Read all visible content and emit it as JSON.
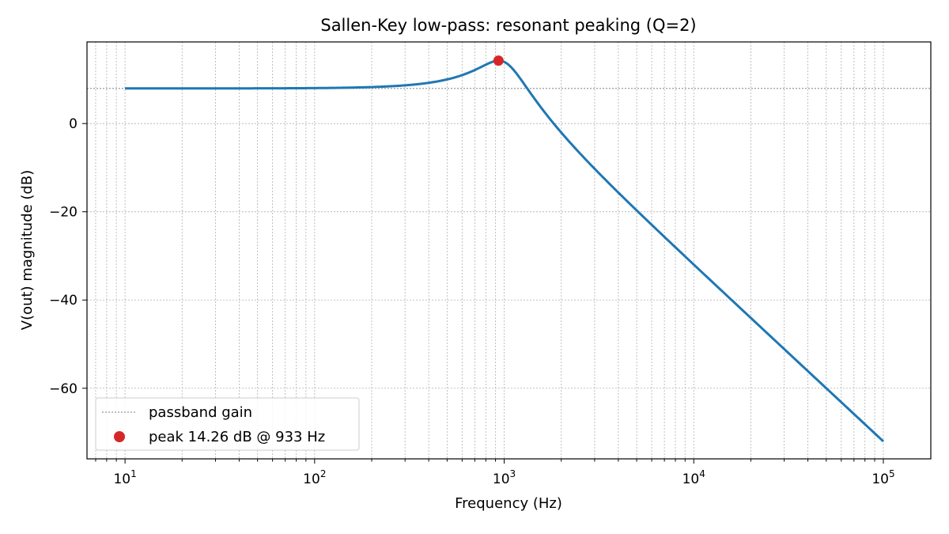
{
  "chart_data": {
    "type": "line",
    "title": "Sallen-Key low-pass: resonant peaking (Q=2)",
    "xlabel": "Frequency (Hz)",
    "ylabel": "V(out) magnitude (dB)",
    "xscale": "log",
    "xlim": [
      6.3,
      178
    ],
    "ylim": [
      -76,
      18.5
    ],
    "x_ticks": [
      {
        "value": 10,
        "base": "10",
        "exp": "1"
      },
      {
        "value": 100,
        "base": "10",
        "exp": "2"
      },
      {
        "value": 1000,
        "base": "10",
        "exp": "3"
      },
      {
        "value": 10000,
        "base": "10",
        "exp": "4"
      },
      {
        "value": 100000,
        "base": "10",
        "exp": "5"
      }
    ],
    "y_ticks": [
      {
        "value": 0,
        "label": "0"
      },
      {
        "value": -20,
        "label": "−20"
      },
      {
        "value": -40,
        "label": "−40"
      },
      {
        "value": -60,
        "label": "−60"
      }
    ],
    "grid": true,
    "series": [
      {
        "type": "line",
        "color": "#1f77b4",
        "filter": {
          "passband_gain_db": 7.96,
          "f0_hz": 1000,
          "q": 2,
          "f_start": 10,
          "f_stop": 100000
        }
      },
      {
        "name": "passband gain",
        "type": "hline",
        "y": 7.96,
        "color": "#999999"
      },
      {
        "name": "peak 14.26 dB @ 933 Hz",
        "type": "point",
        "x": 933,
        "y": 14.26,
        "color": "#d62728"
      }
    ],
    "legend": {
      "position": "lower-left",
      "entries": [
        "passband gain",
        "peak 14.26 dB @ 933 Hz"
      ]
    }
  }
}
